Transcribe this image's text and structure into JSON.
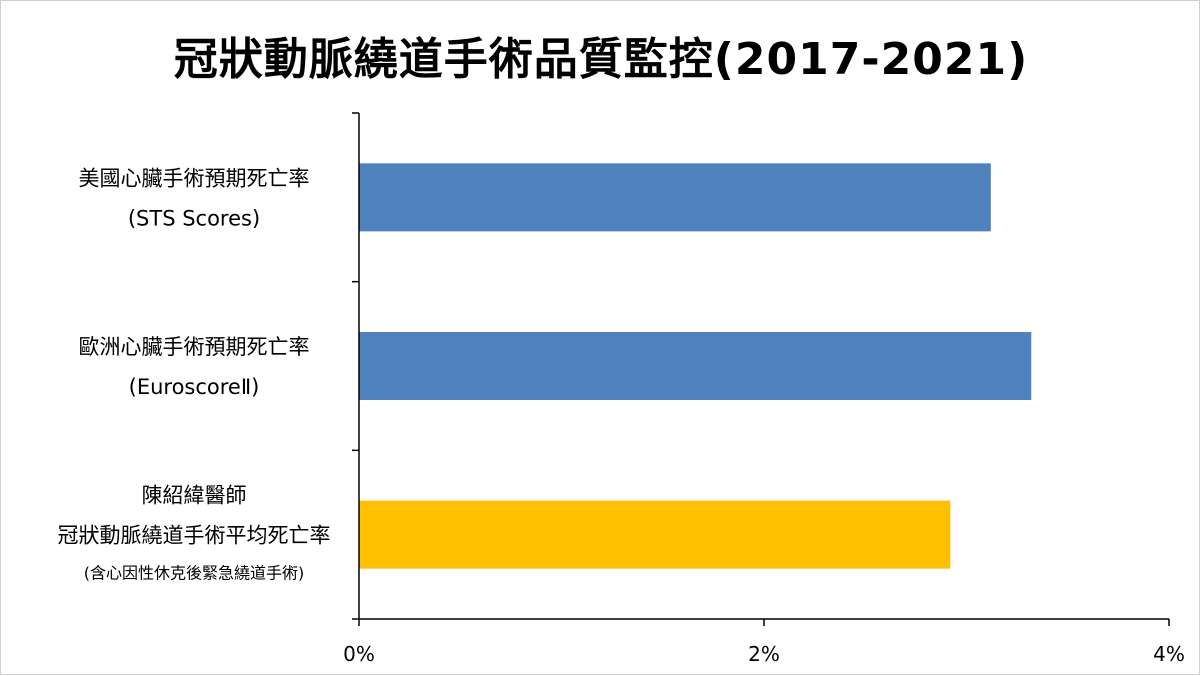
{
  "chart_data": {
    "type": "bar",
    "orientation": "horizontal",
    "title": "冠狀動脈繞道手術品質監控(2017-2021)",
    "categories": [
      {
        "lines": [
          "美國心臟手術預期死亡率",
          "(STS Scores)"
        ]
      },
      {
        "lines": [
          "歐洲心臟手術預期死亡率",
          "(EuroscoreⅡ)"
        ]
      },
      {
        "lines": [
          "陳紹緯醫師",
          "冠狀動脈繞道手術平均死亡率",
          "(含心因性休克後緊急繞道手術)"
        ]
      }
    ],
    "values": [
      3.12,
      3.32,
      2.92
    ],
    "colors": [
      "#4f81bd",
      "#4f81bd",
      "#ffc000"
    ],
    "xlim": [
      0,
      4
    ],
    "xticks": [
      {
        "value": 0,
        "label": "0%"
      },
      {
        "value": 2,
        "label": "2%"
      },
      {
        "value": 4,
        "label": "4%"
      }
    ],
    "unit": "%",
    "grid": false,
    "legend": "none"
  }
}
